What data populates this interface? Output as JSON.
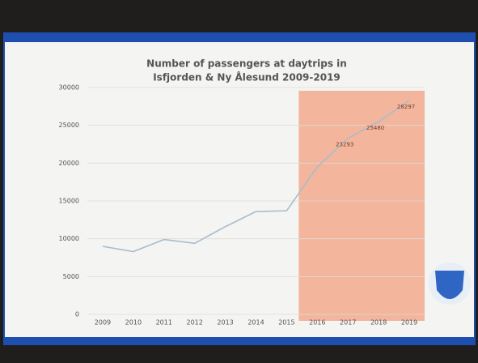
{
  "chart_data": {
    "type": "line",
    "title": [
      "Number of passengers at daytrips in",
      "Isfjorden & Ny Ålesund 2009-2019"
    ],
    "categories": [
      "2009",
      "2010",
      "2011",
      "2012",
      "2013",
      "2014",
      "2015",
      "2016",
      "2017",
      "2018",
      "2019"
    ],
    "values": [
      9000,
      8300,
      9900,
      9400,
      11600,
      13600,
      13700,
      19500,
      23293,
      25480,
      28297
    ],
    "value_labels": [
      null,
      null,
      null,
      null,
      null,
      null,
      null,
      null,
      "23293",
      "25480",
      "28297"
    ],
    "color": "#a9bccb",
    "ylim": [
      0,
      30000
    ],
    "yticks": [
      0,
      5000,
      10000,
      15000,
      20000,
      25000,
      30000
    ],
    "grid": true,
    "highlight_from": "2016",
    "highlight_color": "#f3b59c"
  }
}
